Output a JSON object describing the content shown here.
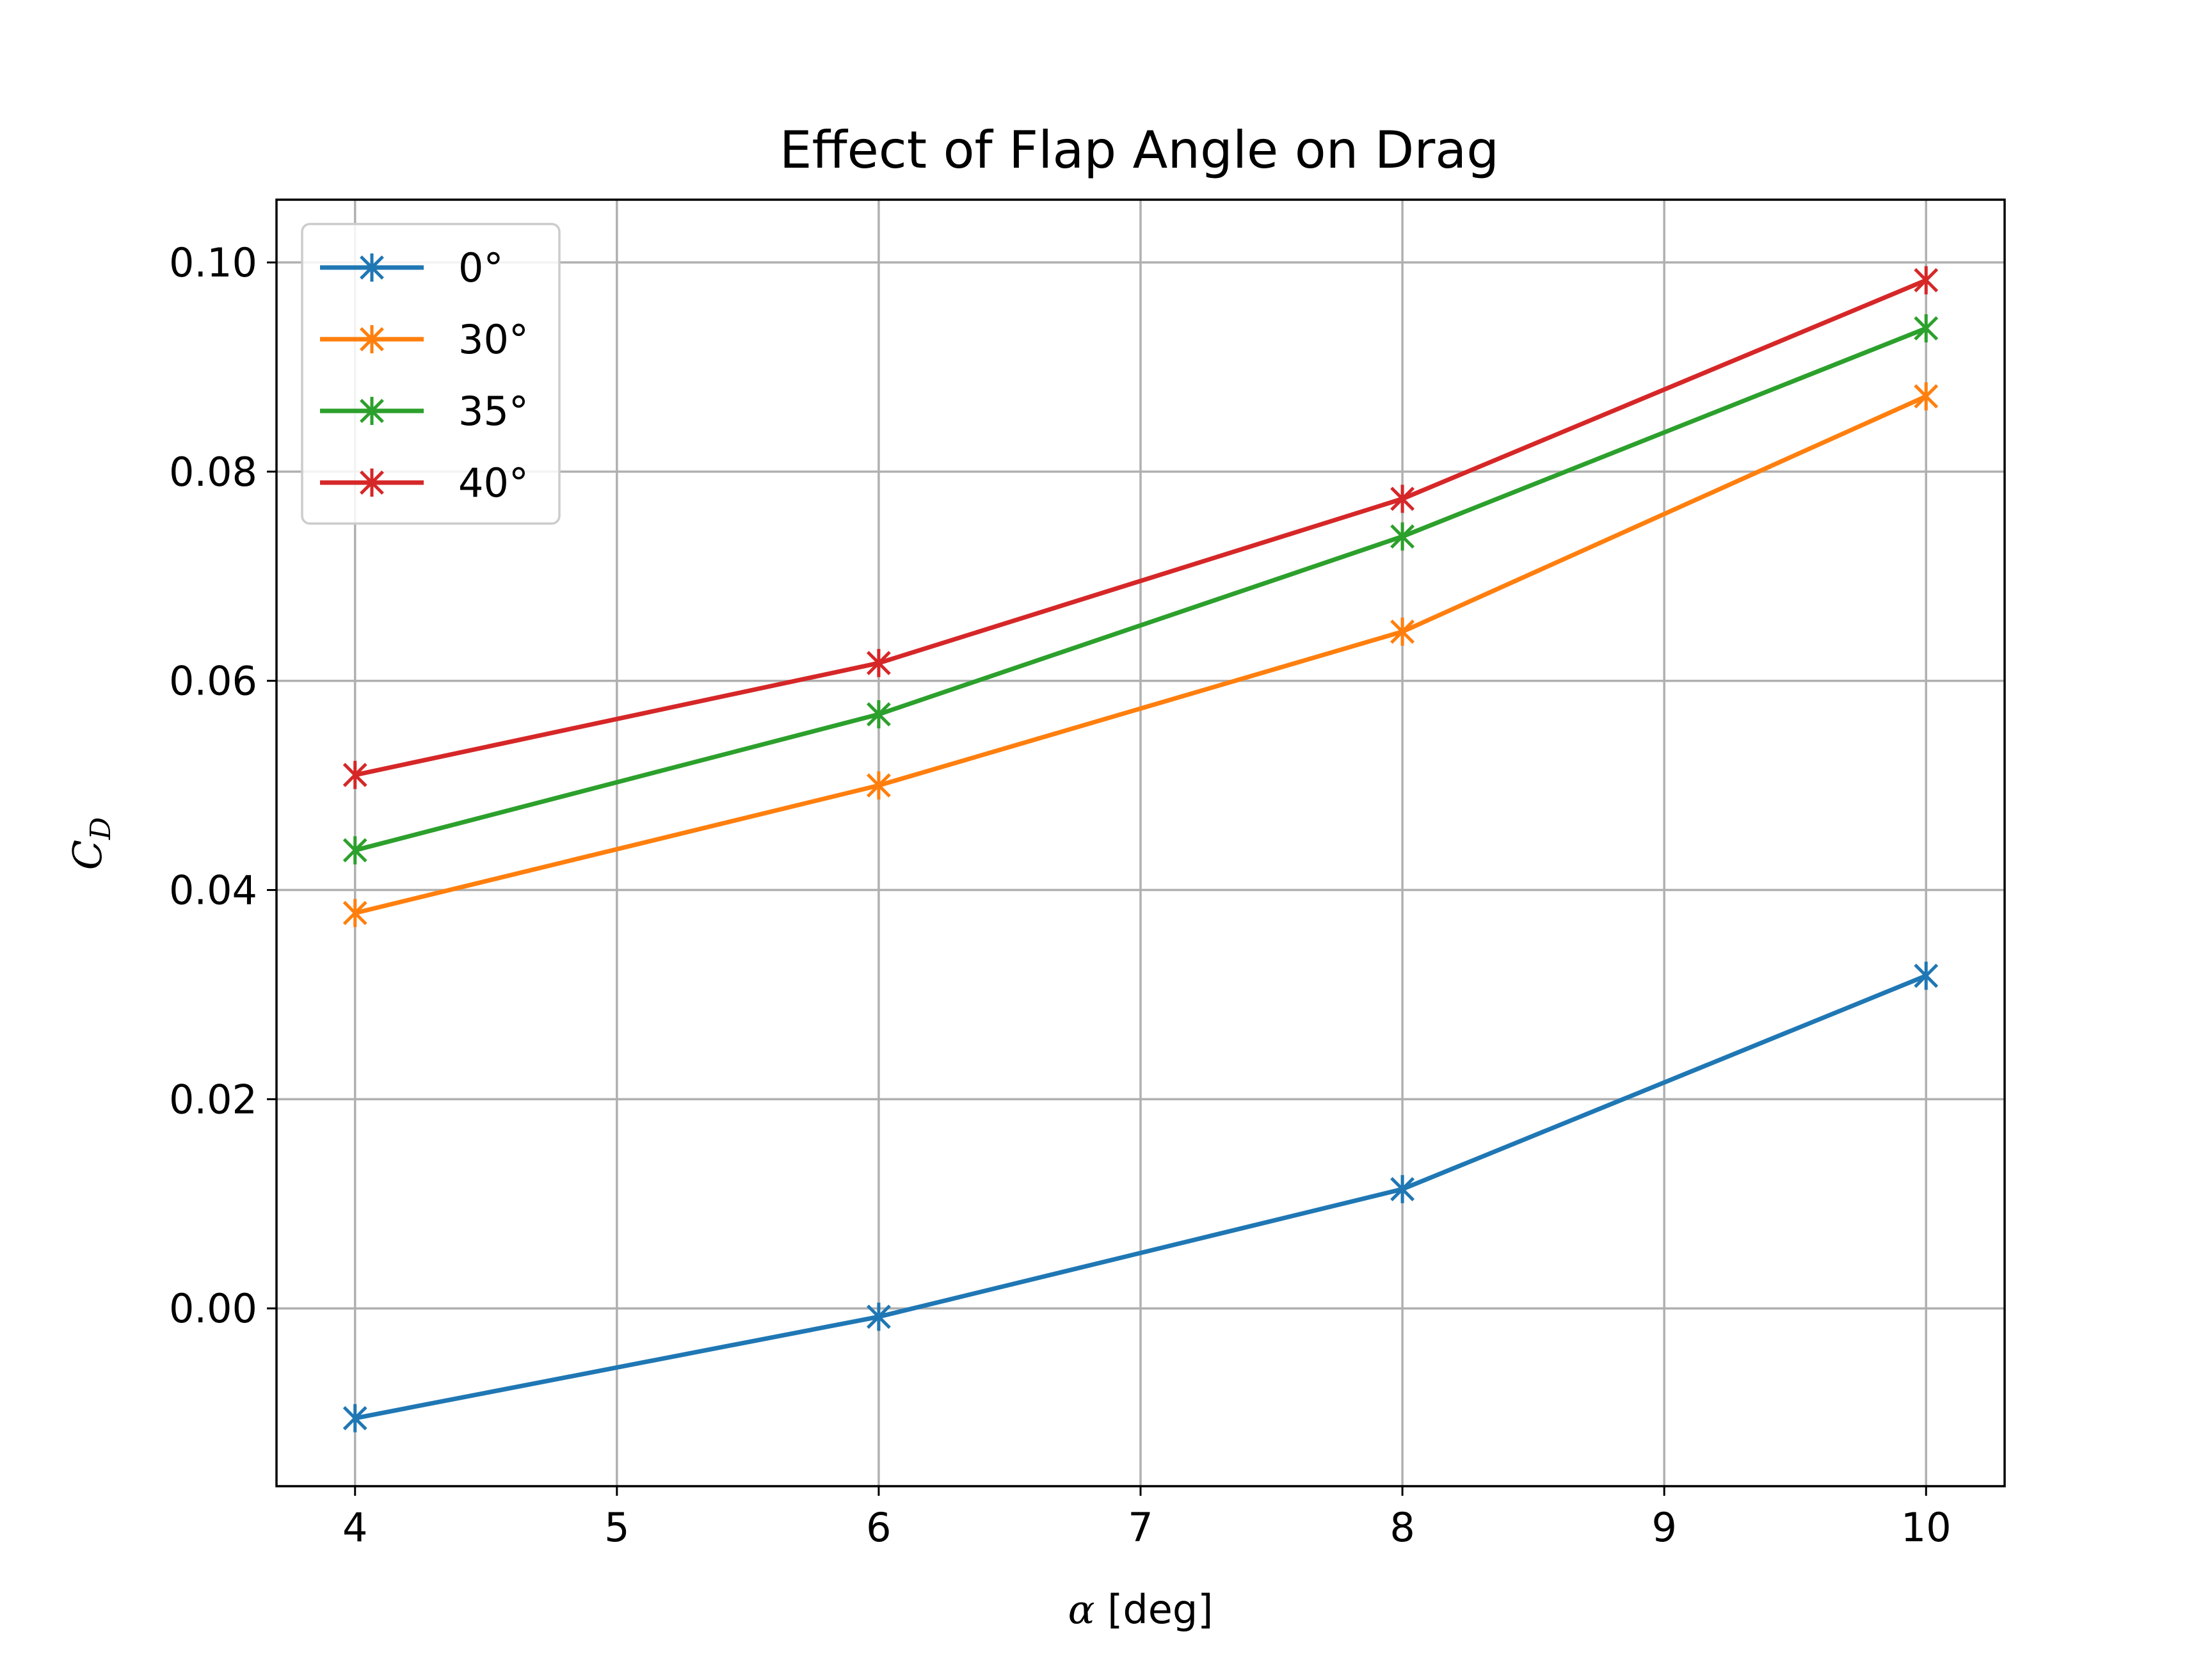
{
  "chart_data": {
    "type": "line",
    "title": "Effect of Flap Angle on Drag",
    "xlabel": "α [deg]",
    "ylabel": "C_D",
    "ylabel_main": "C",
    "ylabel_sub": "D",
    "xlabel_symbol": "α",
    "xlabel_rest": " [deg]",
    "xlim": [
      3.7,
      10.3
    ],
    "ylim": [
      -0.017,
      0.106
    ],
    "x_ticks": [
      4,
      5,
      6,
      7,
      8,
      9,
      10
    ],
    "x_tick_labels": [
      "4",
      "5",
      "6",
      "7",
      "8",
      "9",
      "10"
    ],
    "y_ticks": [
      0.0,
      0.02,
      0.04,
      0.06,
      0.08,
      0.1
    ],
    "y_tick_labels": [
      "0.00",
      "0.02",
      "0.04",
      "0.06",
      "0.08",
      "0.10"
    ],
    "grid": true,
    "legend_position": "top-left",
    "marker": "asterisk",
    "x": [
      4,
      6,
      8,
      10
    ],
    "series": [
      {
        "name": "0°",
        "color": "#1f77b4",
        "values": [
          -0.0105,
          -0.0008,
          0.0114,
          0.0318
        ]
      },
      {
        "name": "30°",
        "color": "#ff7f0e",
        "values": [
          0.0378,
          0.05,
          0.0647,
          0.0872
        ]
      },
      {
        "name": "35°",
        "color": "#2ca02c",
        "values": [
          0.0438,
          0.0568,
          0.0738,
          0.0937
        ]
      },
      {
        "name": "40°",
        "color": "#d62728",
        "values": [
          0.051,
          0.0617,
          0.0774,
          0.0983
        ]
      }
    ]
  }
}
